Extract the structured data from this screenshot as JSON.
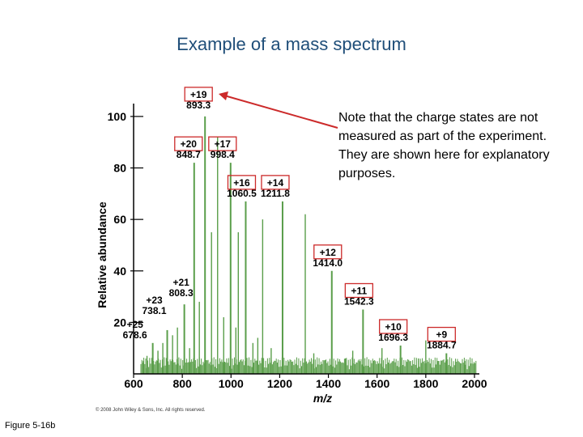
{
  "slide": {
    "title": "Example of a mass spectrum",
    "note": "Note that the charge states are not measured as part of the experiment.  They are shown here for explanatory purposes.",
    "figure_label": "Figure 5-16b",
    "copyright": "© 2008 John Wiley & Sons, Inc. All rights reserved."
  },
  "colors": {
    "title": "#1f4e79",
    "peak": "#5a9e4a",
    "box": "#cc2a2a",
    "arrow": "#cc2a2a",
    "axis": "#000000"
  },
  "chart_data": {
    "type": "line",
    "title": "",
    "xlabel": "m/z",
    "ylabel": "Relative abundance",
    "xlim": [
      600,
      2020
    ],
    "ylim": [
      0,
      105
    ],
    "xticks": [
      600,
      800,
      1000,
      1200,
      1400,
      1600,
      1800,
      2000
    ],
    "yticks": [
      20,
      40,
      60,
      80,
      100
    ],
    "peaks": [
      {
        "mz": 678.6,
        "intensity": 12,
        "charge": "+25",
        "label": "678.6",
        "boxed": false
      },
      {
        "mz": 738.1,
        "intensity": 17,
        "charge": "+23",
        "label": "738.1",
        "boxed": false
      },
      {
        "mz": 808.3,
        "intensity": 27,
        "charge": "+21",
        "label": "808.3",
        "boxed": false
      },
      {
        "mz": 848.7,
        "intensity": 82,
        "charge": "+20",
        "label": "848.7",
        "boxed": true
      },
      {
        "mz": 893.3,
        "intensity": 100,
        "charge": "+19",
        "label": "893.3",
        "boxed": true
      },
      {
        "mz": 998.4,
        "intensity": 82,
        "charge": "+17",
        "label": "998.4",
        "boxed": true
      },
      {
        "mz": 1060.5,
        "intensity": 67,
        "charge": "+16",
        "label": "1060.5",
        "boxed": true
      },
      {
        "mz": 1211.8,
        "intensity": 67,
        "charge": "+14",
        "label": "1211.8",
        "boxed": true
      },
      {
        "mz": 1414.0,
        "intensity": 40,
        "charge": "+12",
        "label": "1414.0",
        "boxed": true
      },
      {
        "mz": 1542.3,
        "intensity": 25,
        "charge": "+11",
        "label": "1542.3",
        "boxed": true
      },
      {
        "mz": 1696.3,
        "intensity": 11,
        "charge": "+10",
        "label": "1696.3",
        "boxed": true
      },
      {
        "mz": 1884.7,
        "intensity": 8,
        "charge": "+9",
        "label": "1884.7",
        "boxed": true
      }
    ],
    "minor_peaks": [
      {
        "mz": 640,
        "intensity": 5
      },
      {
        "mz": 655,
        "intensity": 7
      },
      {
        "mz": 700,
        "intensity": 9
      },
      {
        "mz": 720,
        "intensity": 12
      },
      {
        "mz": 760,
        "intensity": 15
      },
      {
        "mz": 780,
        "intensity": 18
      },
      {
        "mz": 830,
        "intensity": 10
      },
      {
        "mz": 870,
        "intensity": 28
      },
      {
        "mz": 920,
        "intensity": 55
      },
      {
        "mz": 945,
        "intensity": 92
      },
      {
        "mz": 970,
        "intensity": 22
      },
      {
        "mz": 1020,
        "intensity": 18
      },
      {
        "mz": 1030,
        "intensity": 55
      },
      {
        "mz": 1090,
        "intensity": 12
      },
      {
        "mz": 1110,
        "intensity": 14
      },
      {
        "mz": 1130,
        "intensity": 60
      },
      {
        "mz": 1165,
        "intensity": 10
      },
      {
        "mz": 1305,
        "intensity": 62
      },
      {
        "mz": 1340,
        "intensity": 8
      },
      {
        "mz": 1470,
        "intensity": 6
      },
      {
        "mz": 1500,
        "intensity": 9
      },
      {
        "mz": 1620,
        "intensity": 10
      },
      {
        "mz": 1770,
        "intensity": 6
      },
      {
        "mz": 1800,
        "intensity": 13
      },
      {
        "mz": 1850,
        "intensity": 5
      },
      {
        "mz": 1960,
        "intensity": 5
      }
    ]
  }
}
